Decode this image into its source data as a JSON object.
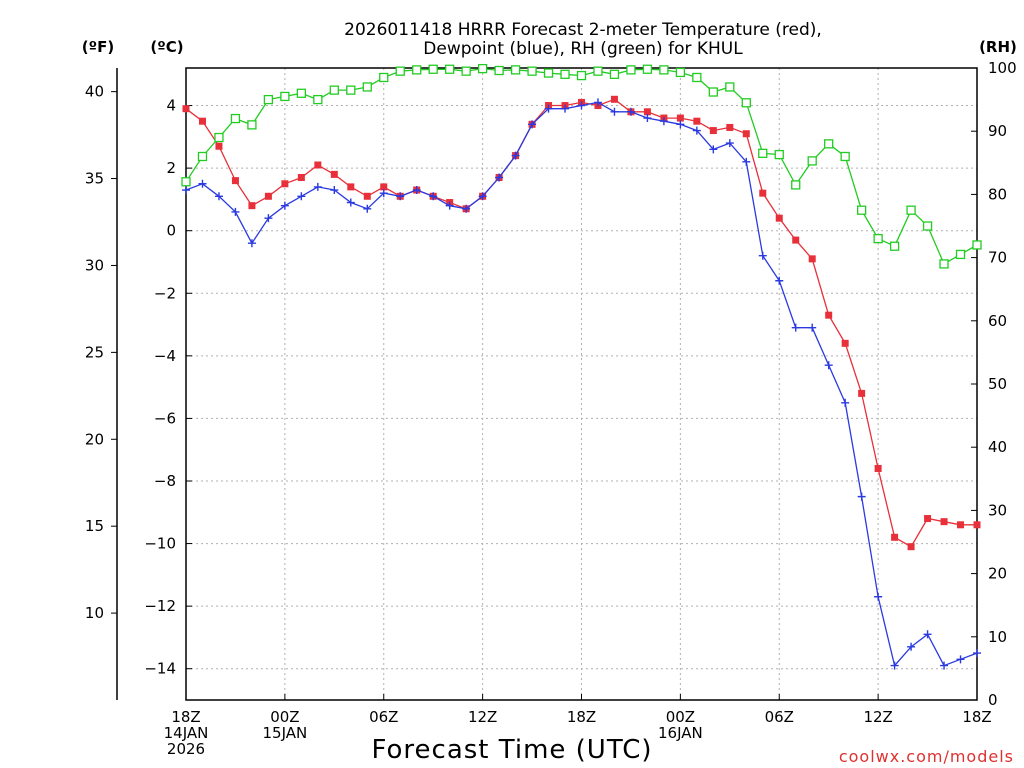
{
  "title_line1": "2026011418 HRRR Forecast 2-meter Temperature (red),",
  "title_line2": "Dewpoint (blue), RH (green) for KHUL",
  "unit_f": "(ºF)",
  "unit_c": "(ºC)",
  "unit_rh": "(RH)",
  "xlabel": "Forecast Time (UTC)",
  "credit": "coolwx.com/models",
  "colors": {
    "temp": "#e8303a",
    "dew": "#2a3ae0",
    "rh": "#22cc22",
    "grid": "#b0b0b0",
    "axis": "#000000"
  },
  "chart_data": {
    "type": "line",
    "title": "2026011418 HRRR Forecast 2-meter Temperature (red), Dewpoint (blue), RH (green) for KHUL",
    "xlabel": "Forecast Time (UTC)",
    "x_hours": [
      0,
      1,
      2,
      3,
      4,
      5,
      6,
      7,
      8,
      9,
      10,
      11,
      12,
      13,
      14,
      15,
      16,
      17,
      18,
      19,
      20,
      21,
      22,
      23,
      24,
      25,
      26,
      27,
      28,
      29,
      30,
      31,
      32,
      33,
      34,
      35,
      36,
      37,
      38,
      39,
      40,
      41,
      42,
      43,
      44,
      45,
      46,
      47,
      48
    ],
    "x_range": [
      0,
      48
    ],
    "x_ticks": [
      {
        "hour": 0,
        "lines": [
          "18Z",
          "14JAN",
          "2026"
        ]
      },
      {
        "hour": 6,
        "lines": [
          "00Z",
          "15JAN"
        ]
      },
      {
        "hour": 12,
        "lines": [
          "06Z"
        ]
      },
      {
        "hour": 18,
        "lines": [
          "12Z"
        ]
      },
      {
        "hour": 24,
        "lines": [
          "18Z"
        ]
      },
      {
        "hour": 30,
        "lines": [
          "00Z",
          "16JAN"
        ]
      },
      {
        "hour": 36,
        "lines": [
          "06Z"
        ]
      },
      {
        "hour": 42,
        "lines": [
          "12Z"
        ]
      },
      {
        "hour": 48,
        "lines": [
          "18Z"
        ]
      }
    ],
    "y_left_celsius": {
      "range": [
        -15,
        5.2
      ],
      "ticks": [
        4,
        2,
        0,
        -2,
        -4,
        -6,
        -8,
        -10,
        -12,
        -14
      ]
    },
    "y_left_fahrenheit": {
      "ticks": [
        40,
        35,
        30,
        25,
        20,
        15,
        10
      ]
    },
    "y_right_rh": {
      "range": [
        0,
        100
      ],
      "ticks": [
        100,
        90,
        80,
        70,
        60,
        50,
        40,
        30,
        20,
        10,
        0
      ]
    },
    "series": [
      {
        "name": "Temperature (C)",
        "color": "red",
        "marker": "filled-square",
        "values": [
          3.9,
          3.5,
          2.7,
          1.6,
          0.8,
          1.1,
          1.5,
          1.7,
          2.1,
          1.8,
          1.4,
          1.1,
          1.4,
          1.1,
          1.3,
          1.1,
          0.9,
          0.7,
          1.1,
          1.7,
          2.4,
          3.4,
          4.0,
          4.0,
          4.1,
          4.0,
          4.2,
          3.8,
          3.8,
          3.6,
          3.6,
          3.5,
          3.2,
          3.3,
          3.1,
          1.2,
          0.4,
          -0.3,
          -0.9,
          -2.7,
          -3.6,
          -5.2,
          -7.6,
          -9.8,
          -10.1,
          -9.2,
          -9.3,
          -9.4,
          -9.4
        ]
      },
      {
        "name": "Dewpoint (C)",
        "color": "blue",
        "marker": "plus",
        "values": [
          1.3,
          1.5,
          1.1,
          0.6,
          -0.4,
          0.4,
          0.8,
          1.1,
          1.4,
          1.3,
          0.9,
          0.7,
          1.2,
          1.1,
          1.3,
          1.1,
          0.8,
          0.7,
          1.1,
          1.7,
          2.4,
          3.4,
          3.9,
          3.9,
          4.0,
          4.1,
          3.8,
          3.8,
          3.6,
          3.5,
          3.4,
          3.2,
          2.6,
          2.8,
          2.2,
          -0.8,
          -1.6,
          -3.1,
          -3.1,
          -4.3,
          -5.5,
          -8.5,
          -11.7,
          -13.9,
          -13.3,
          -12.9,
          -13.9,
          -13.7,
          -13.5
        ]
      },
      {
        "name": "RH (%)",
        "color": "green",
        "marker": "open-square",
        "values": [
          82,
          86,
          89,
          92,
          91,
          95,
          95.5,
          96,
          95,
          96.5,
          96.5,
          97,
          98.5,
          99.5,
          99.7,
          99.8,
          99.8,
          99.5,
          99.9,
          99.6,
          99.7,
          99.5,
          99.2,
          99.0,
          98.8,
          99.5,
          99.0,
          99.7,
          99.8,
          99.7,
          99.3,
          98.5,
          96.2,
          97.0,
          94.5,
          86.5,
          86.3,
          81.5,
          85.3,
          88.0,
          86.0,
          77.5,
          73.0,
          71.8,
          77.5,
          75.0,
          69.0,
          70.5,
          72.0
        ]
      }
    ]
  }
}
